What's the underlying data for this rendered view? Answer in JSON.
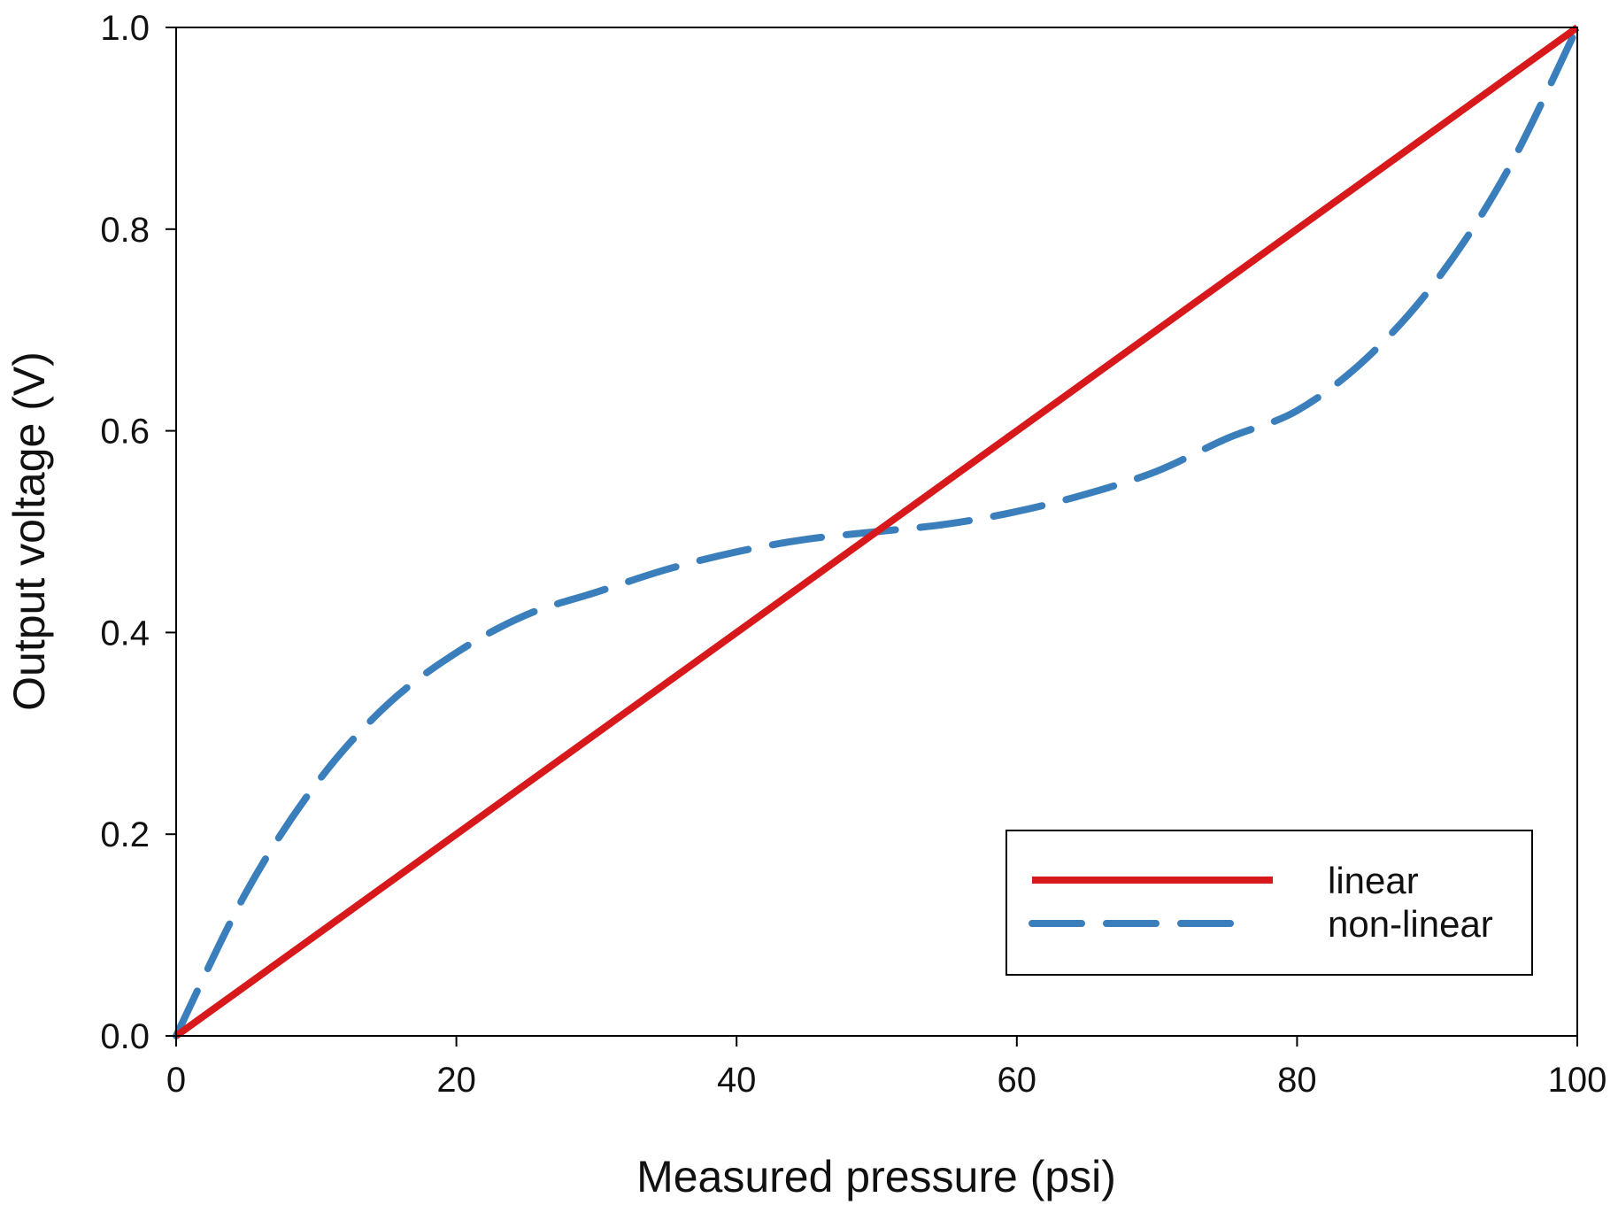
{
  "chart_data": {
    "type": "line",
    "title": "",
    "xlabel": "Measured pressure (psi)",
    "ylabel": "Output voltage (V)",
    "xlim": [
      0,
      100
    ],
    "ylim": [
      0,
      1.0
    ],
    "x_ticks": [
      "0",
      "20",
      "40",
      "60",
      "80",
      "100"
    ],
    "y_ticks": [
      "0.0",
      "0.2",
      "0.4",
      "0.6",
      "0.8",
      "1.0"
    ],
    "grid": false,
    "legend_position": "bottom-right",
    "series": [
      {
        "name": "linear",
        "style": "solid",
        "color": "#d7191c",
        "x": [
          0,
          100
        ],
        "y": [
          0,
          1.0
        ]
      },
      {
        "name": "non-linear",
        "style": "dashed",
        "color": "#3a7fbc",
        "x": [
          0,
          5,
          10,
          15,
          20,
          25,
          30,
          35,
          40,
          45,
          50,
          55,
          60,
          65,
          70,
          75,
          80,
          85,
          90,
          95,
          100
        ],
        "y": [
          0,
          0.1425,
          0.25,
          0.3275,
          0.38,
          0.4175,
          0.44,
          0.4625,
          0.48,
          0.4925,
          0.5,
          0.5075,
          0.52,
          0.5375,
          0.56,
          0.5925,
          0.62,
          0.6725,
          0.75,
          0.8575,
          1.0
        ]
      }
    ]
  }
}
